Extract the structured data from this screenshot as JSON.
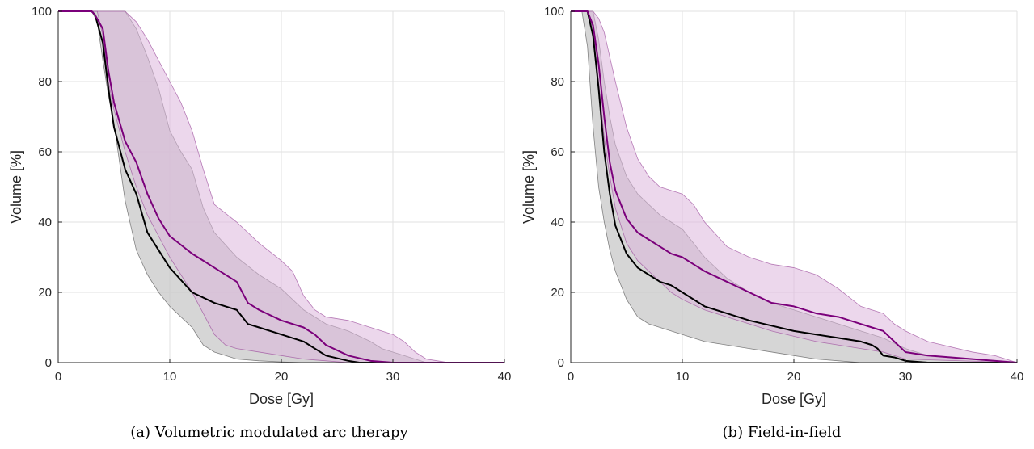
{
  "chart_data": [
    {
      "type": "area",
      "caption": "(a) Volumetric modulated arc therapy",
      "xlabel": "Dose [Gy]",
      "ylabel": "Volume [%]",
      "xlim": [
        0,
        40
      ],
      "ylim": [
        0,
        100
      ],
      "xticks": [
        "0",
        "10",
        "20",
        "30",
        "40"
      ],
      "yticks": [
        "0",
        "20",
        "40",
        "60",
        "80",
        "100"
      ],
      "grid": true,
      "colors": {
        "black": "#000000",
        "purple": "#7b007b",
        "gray_band": "#c8c8c8",
        "purple_band": "#dcb6dc"
      },
      "series": [
        {
          "x": [
            0,
            3,
            3.3,
            4,
            4.5,
            5,
            6,
            7,
            8,
            9,
            10,
            12,
            14,
            16,
            17,
            18,
            20,
            22,
            24,
            26,
            27,
            28,
            30
          ],
          "y": [
            100,
            100,
            99,
            91,
            78,
            67,
            55,
            48,
            37,
            32,
            27,
            20,
            17,
            15,
            11,
            10,
            8,
            6,
            2,
            0.5,
            0,
            0,
            0
          ]
        },
        {
          "x": [
            0,
            3,
            3.3,
            4,
            4.5,
            5,
            6,
            7,
            8,
            9,
            10,
            12,
            14,
            16,
            17,
            18,
            20,
            22,
            23,
            24,
            26,
            28,
            30,
            40
          ],
          "y": [
            100,
            100,
            99,
            95,
            83,
            74,
            63,
            57,
            48,
            41,
            36,
            31,
            27,
            23,
            17,
            15,
            12,
            10,
            8,
            5,
            2,
            0.5,
            0,
            0
          ]
        }
      ],
      "bands": [
        {
          "x_upper": [
            0,
            3,
            4,
            5,
            6,
            7,
            8,
            9,
            10,
            11,
            12,
            13,
            14,
            16,
            18,
            20,
            22,
            24,
            26,
            28,
            29,
            30,
            31,
            32,
            33,
            40
          ],
          "y_upper": [
            100,
            100,
            100,
            100,
            100,
            95,
            87,
            78,
            66,
            60,
            55,
            44,
            37,
            30,
            25,
            21,
            15,
            11,
            9,
            6,
            4,
            3,
            2,
            1,
            0,
            0
          ],
          "x_lower": [
            0,
            3,
            3.5,
            4,
            4.5,
            5,
            6,
            7,
            8,
            9,
            10,
            11,
            12,
            13,
            14,
            15,
            16,
            18,
            20,
            22,
            25,
            40
          ],
          "y_lower": [
            100,
            100,
            97,
            86,
            76,
            68,
            46,
            32,
            25,
            20,
            16,
            13,
            10,
            5,
            3,
            2,
            1,
            0.5,
            0.2,
            0,
            0,
            0
          ]
        },
        {
          "x_upper": [
            0,
            4.5,
            5,
            6,
            7,
            8,
            9,
            10,
            11,
            12,
            13,
            14,
            16,
            18,
            20,
            21,
            22,
            23,
            24,
            26,
            28,
            30,
            31,
            32,
            33,
            34,
            35,
            40
          ],
          "y_upper": [
            100,
            100,
            100,
            100,
            97,
            92,
            86,
            80,
            74,
            66,
            55,
            45,
            40,
            34,
            29,
            26,
            19,
            15,
            13,
            12,
            10,
            8,
            6,
            3,
            1,
            0.5,
            0,
            0
          ],
          "x_lower": [
            0,
            3.5,
            4,
            4.5,
            5,
            6,
            7,
            8,
            9,
            10,
            11,
            12,
            13,
            14,
            15,
            16,
            18,
            20,
            22,
            24,
            26,
            28,
            40
          ],
          "y_lower": [
            100,
            100,
            93,
            80,
            72,
            60,
            50,
            42,
            36,
            30,
            25,
            20,
            14,
            8,
            5,
            4,
            3,
            2,
            1,
            0.5,
            0,
            0,
            0
          ]
        }
      ]
    },
    {
      "type": "area",
      "caption": "(b) Field-in-field",
      "xlabel": "Dose [Gy]",
      "ylabel": "Volume [%]",
      "xlim": [
        0,
        40
      ],
      "ylim": [
        0,
        100
      ],
      "xticks": [
        "0",
        "10",
        "20",
        "30",
        "40"
      ],
      "yticks": [
        "0",
        "20",
        "40",
        "60",
        "80",
        "100"
      ],
      "grid": true,
      "colors": {
        "black": "#000000",
        "purple": "#7b007b",
        "gray_band": "#c8c8c8",
        "purple_band": "#dcb6dc"
      },
      "series": [
        {
          "x": [
            0,
            1.5,
            2,
            2.5,
            3,
            3.5,
            4,
            5,
            6,
            7,
            8,
            9,
            10,
            12,
            14,
            16,
            18,
            20,
            22,
            24,
            26,
            27,
            27.5,
            28,
            29,
            30,
            32,
            40
          ],
          "y": [
            100,
            100,
            93,
            78,
            60,
            48,
            39,
            31,
            27,
            25,
            23,
            22,
            20,
            16,
            14,
            12,
            10.5,
            9,
            8,
            7,
            6,
            5,
            4,
            2,
            1.5,
            0.5,
            0,
            0
          ]
        },
        {
          "x": [
            0,
            1.5,
            2,
            2.5,
            3,
            3.5,
            4,
            5,
            6,
            7,
            8,
            9,
            10,
            11,
            12,
            14,
            16,
            18,
            20,
            22,
            24,
            26,
            27,
            28,
            29,
            30,
            32,
            36,
            40
          ],
          "y": [
            100,
            100,
            96,
            85,
            70,
            57,
            49,
            41,
            37,
            35,
            33,
            31,
            30,
            28,
            26,
            23,
            20,
            17,
            16,
            14,
            13,
            11,
            10,
            9,
            6,
            3,
            2,
            1,
            0
          ]
        }
      ],
      "bands": [
        {
          "x_upper": [
            0,
            1.5,
            2,
            2.5,
            3,
            3.5,
            4,
            5,
            6,
            7,
            8,
            9,
            10,
            11,
            12,
            14,
            16,
            18,
            20,
            22,
            24,
            26,
            28,
            30,
            32,
            40
          ],
          "y_upper": [
            100,
            100,
            100,
            92,
            80,
            70,
            62,
            53,
            48,
            45,
            42,
            40,
            38,
            34,
            30,
            24,
            20,
            17,
            15,
            13,
            11,
            9,
            7,
            4,
            2,
            0
          ],
          "x_lower": [
            0,
            1,
            1.5,
            2,
            2.5,
            3,
            3.5,
            4,
            5,
            6,
            7,
            8,
            9,
            10,
            12,
            14,
            16,
            18,
            20,
            22,
            24,
            26,
            40
          ],
          "y_lower": [
            100,
            100,
            90,
            67,
            50,
            40,
            32,
            26,
            18,
            13,
            11,
            10,
            9,
            8,
            6,
            5,
            4,
            3,
            2,
            1,
            0.5,
            0,
            0
          ]
        },
        {
          "x_upper": [
            0,
            2,
            2.5,
            3,
            3.5,
            4,
            5,
            6,
            7,
            8,
            9,
            10,
            11,
            12,
            14,
            16,
            18,
            20,
            22,
            24,
            26,
            28,
            29,
            30,
            32,
            36,
            38,
            39,
            40
          ],
          "y_upper": [
            100,
            100,
            98,
            94,
            87,
            80,
            67,
            58,
            53,
            50,
            49,
            48,
            45,
            40,
            33,
            30,
            28,
            27,
            25,
            21,
            16,
            14,
            11,
            9,
            6,
            3,
            2,
            1,
            0
          ]
        },
        {
          "x_lower": [
            0,
            1.5,
            2,
            2.5,
            3,
            3.5,
            4,
            5,
            6,
            7,
            8,
            9,
            10,
            12,
            14,
            16,
            18,
            20,
            22,
            24,
            26,
            28,
            30,
            40
          ],
          "y_lower": [
            100,
            100,
            95,
            80,
            64,
            53,
            44,
            34,
            29,
            26,
            23,
            20,
            18,
            15,
            13,
            11,
            9,
            7.5,
            6,
            5,
            4,
            3,
            1,
            0
          ]
        }
      ]
    }
  ]
}
